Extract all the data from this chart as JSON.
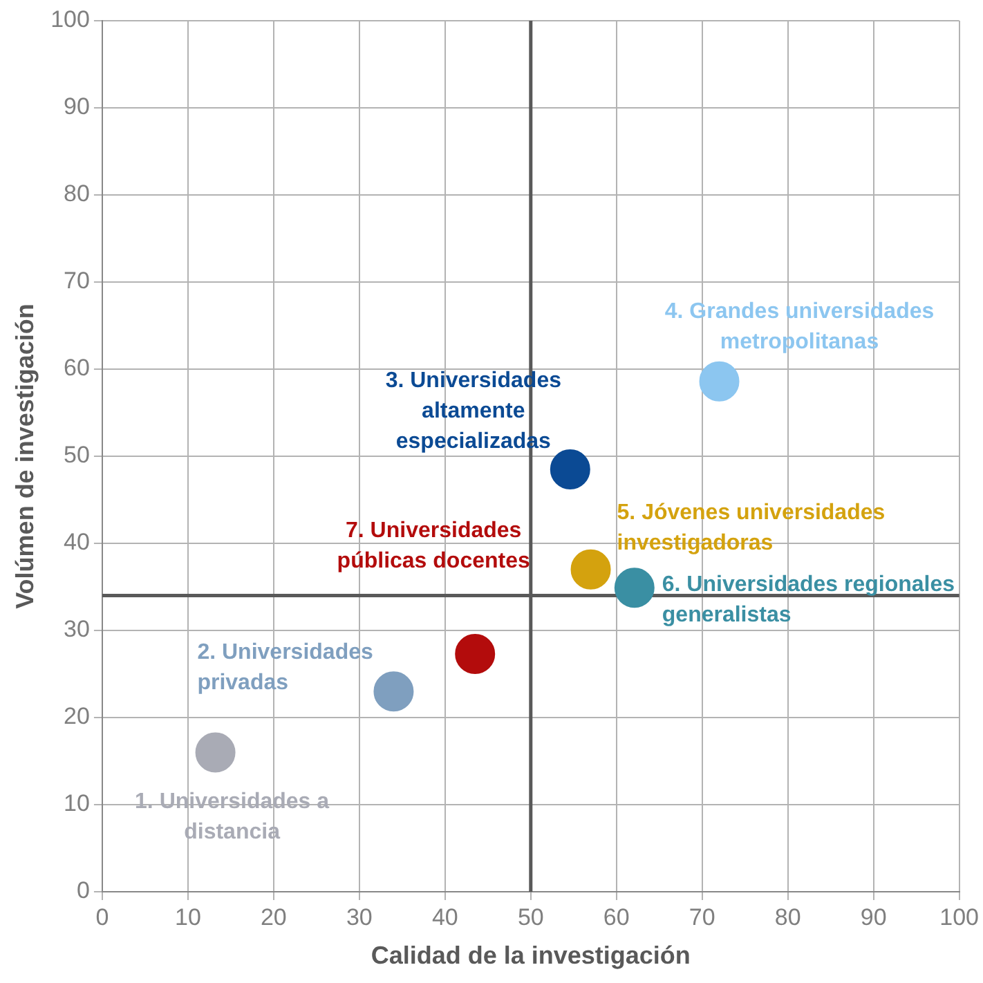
{
  "chart_data": {
    "type": "scatter",
    "xlabel": "Calidad de la investigación",
    "ylabel": "Volúmen de investigación",
    "xlim": [
      0,
      100
    ],
    "xticks": [
      0,
      10,
      20,
      30,
      40,
      50,
      60,
      70,
      80,
      90,
      100
    ],
    "ylim": [
      0,
      100
    ],
    "yticks": [
      0,
      10,
      20,
      30,
      40,
      50,
      60,
      70,
      80,
      90,
      100
    ],
    "grid": true,
    "legend": false,
    "marker": "circle",
    "ref_lines": [
      {
        "axis": "x",
        "value": 50,
        "color": "#595959"
      },
      {
        "axis": "y",
        "value": 34,
        "color": "#595959"
      }
    ],
    "series": [
      {
        "name": "1. Universidades a distancia",
        "color": "#a9abb5",
        "x": [
          13.2
        ],
        "values": [
          16
        ]
      },
      {
        "name": "2. Universidades privadas",
        "color": "#7f9fbf",
        "x": [
          34
        ],
        "values": [
          23
        ]
      },
      {
        "name": "3. Universidades altamente especializadas",
        "color": "#0b4a94",
        "x": [
          54.6
        ],
        "values": [
          48.5
        ]
      },
      {
        "name": "4. Grandes universidades metropolitanas",
        "color": "#8cc6f0",
        "x": [
          72
        ],
        "values": [
          58.6
        ]
      },
      {
        "name": "5. Jóvenes universidades investigadoras",
        "color": "#d4a20e",
        "x": [
          57
        ],
        "values": [
          37
        ]
      },
      {
        "name": "6. Universidades regionales generalistas",
        "color": "#3a8fa3",
        "x": [
          62.1
        ],
        "values": [
          34.9
        ]
      },
      {
        "name": "7. Universidades públicas docentes",
        "color": "#b30c0c",
        "x": [
          43.5
        ],
        "values": [
          27.3
        ]
      }
    ]
  }
}
